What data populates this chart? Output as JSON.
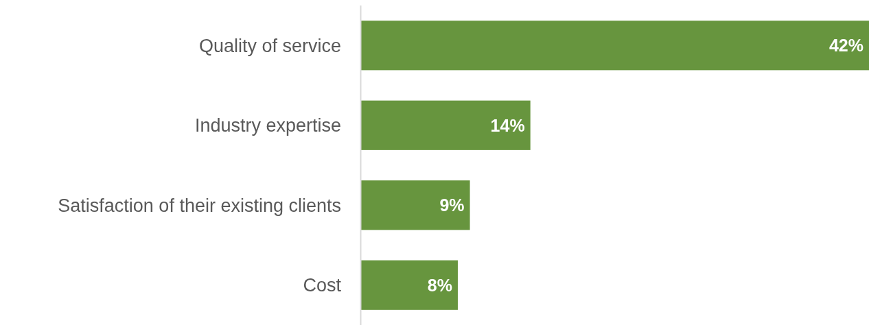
{
  "chart_data": {
    "type": "bar",
    "orientation": "horizontal",
    "categories": [
      "Quality of service",
      "Industry expertise",
      "Satisfaction of their existing clients",
      "Cost"
    ],
    "values": [
      42,
      14,
      9,
      8
    ],
    "color": "#67953e",
    "value_labels": [
      "42%",
      "14%",
      "9%",
      "8%"
    ]
  }
}
